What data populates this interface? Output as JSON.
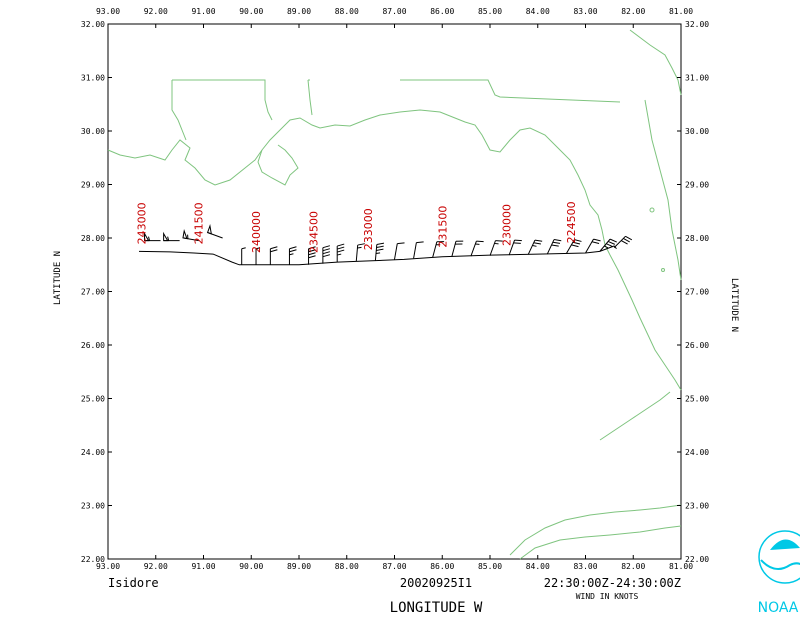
{
  "map": {
    "lon_ticks": [
      "93.00",
      "92.00",
      "91.00",
      "90.00",
      "89.00",
      "88.00",
      "87.00",
      "86.00",
      "85.00",
      "84.00",
      "83.00",
      "82.00",
      "81.00"
    ],
    "lat_ticks": [
      "22.00",
      "23.00",
      "24.00",
      "25.00",
      "26.00",
      "27.00",
      "28.00",
      "29.00",
      "30.00",
      "31.00",
      "32.00"
    ],
    "lon_range": [
      -93,
      -81
    ],
    "lat_range": [
      22,
      32
    ],
    "y_axis_label": "LATITUDE   N",
    "x_axis_label": "LONGITUDE   W",
    "coastline_color": "#7fc47f",
    "track_color": "#000000",
    "label_color": "#c80000"
  },
  "footer": {
    "storm_name": "Isidore",
    "flight_id": "20020925I1",
    "time_range": "22:30:00Z-24:30:00Z",
    "wind_units": "WIND IN KNOTS"
  },
  "logo": {
    "text": "NOAA",
    "color": "#00c8e6"
  },
  "track": {
    "points": [
      [
        -92.35,
        27.75
      ],
      [
        -91.7,
        27.74
      ],
      [
        -91.2,
        27.72
      ],
      [
        -90.8,
        27.7
      ],
      [
        -90.4,
        27.55
      ],
      [
        -90.25,
        27.5
      ],
      [
        -89.6,
        27.5
      ],
      [
        -89.0,
        27.5
      ],
      [
        -88.2,
        27.55
      ],
      [
        -87.6,
        27.57
      ],
      [
        -86.8,
        27.6
      ],
      [
        -86.0,
        27.65
      ],
      [
        -85.0,
        27.68
      ],
      [
        -84.0,
        27.7
      ],
      [
        -83.0,
        27.72
      ],
      [
        -82.7,
        27.75
      ],
      [
        -82.4,
        27.85
      ],
      [
        -82.35,
        27.8
      ]
    ],
    "time_labels": [
      {
        "text": "243000",
        "lon": -92.3,
        "lat": 27.88
      },
      {
        "text": "241500",
        "lon": -91.1,
        "lat": 27.88
      },
      {
        "text": "240000",
        "lon": -89.9,
        "lat": 27.72
      },
      {
        "text": "234500",
        "lon": -88.7,
        "lat": 27.72
      },
      {
        "text": "233000",
        "lon": -87.55,
        "lat": 27.77
      },
      {
        "text": "231500",
        "lon": -86.0,
        "lat": 27.82
      },
      {
        "text": "230000",
        "lon": -84.65,
        "lat": 27.85
      },
      {
        "text": "224500",
        "lon": -83.3,
        "lat": 27.9
      }
    ],
    "wind_barbs": [
      {
        "lon": -91.9,
        "lat": 27.95,
        "dir": 270,
        "speed": 55
      },
      {
        "lon": -91.5,
        "lat": 27.95,
        "dir": 270,
        "speed": 55
      },
      {
        "lon": -91.1,
        "lat": 27.95,
        "dir": 280,
        "speed": 55
      },
      {
        "lon": -90.6,
        "lat": 28.0,
        "dir": 290,
        "speed": 50
      },
      {
        "lon": -90.2,
        "lat": 27.5,
        "dir": 0,
        "speed": 5
      },
      {
        "lon": -89.9,
        "lat": 27.5,
        "dir": 0,
        "speed": 5
      },
      {
        "lon": -89.6,
        "lat": 27.5,
        "dir": 0,
        "speed": 20
      },
      {
        "lon": -89.2,
        "lat": 27.5,
        "dir": 0,
        "speed": 25
      },
      {
        "lon": -88.8,
        "lat": 27.5,
        "dir": 0,
        "speed": 40
      },
      {
        "lon": -88.5,
        "lat": 27.52,
        "dir": 0,
        "speed": 40
      },
      {
        "lon": -88.2,
        "lat": 27.55,
        "dir": 0,
        "speed": 35
      },
      {
        "lon": -87.8,
        "lat": 27.57,
        "dir": 5,
        "speed": 15
      },
      {
        "lon": -87.4,
        "lat": 27.58,
        "dir": 5,
        "speed": 35
      },
      {
        "lon": -87.0,
        "lat": 27.6,
        "dir": 10,
        "speed": 10
      },
      {
        "lon": -86.6,
        "lat": 27.62,
        "dir": 10,
        "speed": 10
      },
      {
        "lon": -86.2,
        "lat": 27.64,
        "dir": 15,
        "speed": 15
      },
      {
        "lon": -85.8,
        "lat": 27.65,
        "dir": 15,
        "speed": 20
      },
      {
        "lon": -85.4,
        "lat": 27.66,
        "dir": 20,
        "speed": 15
      },
      {
        "lon": -85.0,
        "lat": 27.67,
        "dir": 20,
        "speed": 15
      },
      {
        "lon": -84.6,
        "lat": 27.68,
        "dir": 20,
        "speed": 20
      },
      {
        "lon": -84.2,
        "lat": 27.69,
        "dir": 25,
        "speed": 25
      },
      {
        "lon": -83.8,
        "lat": 27.7,
        "dir": 25,
        "speed": 30
      },
      {
        "lon": -83.4,
        "lat": 27.71,
        "dir": 30,
        "speed": 30
      },
      {
        "lon": -83.0,
        "lat": 27.72,
        "dir": 30,
        "speed": 20
      },
      {
        "lon": -82.7,
        "lat": 27.75,
        "dir": 40,
        "speed": 35
      },
      {
        "lon": -82.4,
        "lat": 27.82,
        "dir": 45,
        "speed": 30
      }
    ]
  }
}
